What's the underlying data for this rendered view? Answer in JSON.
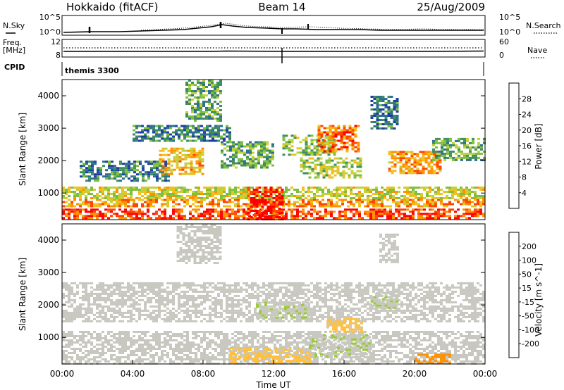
{
  "header": {
    "title_left": "Hokkaido (fitACF)",
    "title_center": "Beam 14",
    "title_right": "25/Aug/2009"
  },
  "noise_panel": {
    "left_label": "N.Sky",
    "left_ticks": [
      "10^5",
      "10^0"
    ],
    "right_label": "N.Search",
    "right_ticks": [
      "10^5",
      "10^0"
    ]
  },
  "freq_panel": {
    "left_label_1": "Freq.",
    "left_label_2": "[MHz]",
    "left_ticks": [
      "12",
      "8"
    ],
    "right_label": "Nave",
    "right_ticks": [
      "60",
      "0"
    ]
  },
  "cpid_panel": {
    "label": "CPID",
    "value": "themis 3300"
  },
  "colors": {
    "power": [
      "#0000ff",
      "#1f3fa0",
      "#2f6f8f",
      "#3f8f5f",
      "#7fbf3f",
      "#bfd23a",
      "#f0c020",
      "#ff9000",
      "#ff4500",
      "#ff0000"
    ],
    "velocity": [
      "#ff0000",
      "#ff5000",
      "#ff9000",
      "#ffc040",
      "#c8c8c0",
      "#c8c8c0",
      "#99cc33",
      "#33aa33",
      "#1f5fa0",
      "#0000ff"
    ]
  },
  "chart_data": [
    {
      "type": "heatmap",
      "name": "power",
      "xlabel": "",
      "ylabel": "Slant Range [km]",
      "xlim": [
        0,
        24
      ],
      "ylim": [
        180,
        4500
      ],
      "yticks": [
        "1000",
        "2000",
        "3000",
        "4000"
      ],
      "yticks_values": [
        1000,
        2000,
        3000,
        4000
      ],
      "colorbar_label": "Power [dB]",
      "colorbar_ticks": [
        "4",
        "8",
        "12",
        "16",
        "20",
        "24",
        "28"
      ],
      "colorbar_range": [
        0,
        30
      ],
      "regions": [
        {
          "t0": 0.0,
          "t1": 24.0,
          "r0": 200,
          "r1": 520,
          "v": 26
        },
        {
          "t0": 0.0,
          "t1": 24.0,
          "r0": 560,
          "r1": 820,
          "v": 22
        },
        {
          "t0": 0.0,
          "t1": 24.0,
          "r0": 860,
          "r1": 1200,
          "v": 17
        },
        {
          "t0": 1.0,
          "t1": 6.0,
          "r0": 1400,
          "r1": 2000,
          "v": 9
        },
        {
          "t0": 5.5,
          "t1": 8.0,
          "r0": 1600,
          "r1": 2400,
          "v": 20
        },
        {
          "t0": 4.0,
          "t1": 9.5,
          "r0": 2600,
          "r1": 3100,
          "v": 9
        },
        {
          "t0": 7.0,
          "t1": 9.0,
          "r0": 3200,
          "r1": 4500,
          "v": 12
        },
        {
          "t0": 9.0,
          "t1": 12.0,
          "r0": 1800,
          "r1": 2600,
          "v": 12
        },
        {
          "t0": 12.5,
          "t1": 15.5,
          "r0": 2200,
          "r1": 2800,
          "v": 14
        },
        {
          "t0": 14.5,
          "t1": 16.8,
          "r0": 2300,
          "r1": 3100,
          "v": 24
        },
        {
          "t0": 13.5,
          "t1": 17.0,
          "r0": 1500,
          "r1": 2100,
          "v": 16
        },
        {
          "t0": 17.5,
          "t1": 19.0,
          "r0": 3000,
          "r1": 4000,
          "v": 8
        },
        {
          "t0": 18.5,
          "t1": 21.5,
          "r0": 1600,
          "r1": 2300,
          "v": 22
        },
        {
          "t0": 21.0,
          "t1": 24.0,
          "r0": 2000,
          "r1": 2700,
          "v": 12
        },
        {
          "t0": 10.5,
          "t1": 12.5,
          "r0": 200,
          "r1": 1200,
          "v": 28
        }
      ]
    },
    {
      "type": "heatmap",
      "name": "velocity",
      "xlabel": "Time UT",
      "ylabel": "Slant Range [km]",
      "xlim": [
        0,
        24
      ],
      "ylim": [
        180,
        4500
      ],
      "xticks": [
        "00:00",
        "04:00",
        "08:00",
        "12:00",
        "16:00",
        "20:00",
        "00:00"
      ],
      "xticks_values": [
        0,
        4,
        8,
        12,
        16,
        20,
        24
      ],
      "yticks": [
        "1000",
        "2000",
        "3000",
        "4000"
      ],
      "yticks_values": [
        1000,
        2000,
        3000,
        4000
      ],
      "colorbar_label": "Velocity [m s^-1]",
      "colorbar_ticks": [
        "-200",
        "-100",
        "-50",
        "-15",
        "15",
        "50",
        "100",
        "200"
      ],
      "colorbar_range": [
        -250,
        250
      ],
      "regions": [
        {
          "t0": 0.0,
          "t1": 24.0,
          "r0": 200,
          "r1": 1200,
          "v": 0
        },
        {
          "t0": 0.0,
          "t1": 24.0,
          "r0": 1500,
          "r1": 2700,
          "v": 0
        },
        {
          "t0": 9.5,
          "t1": 14.0,
          "r0": 200,
          "r1": 700,
          "v": -60
        },
        {
          "t0": 14.0,
          "t1": 17.5,
          "r0": 400,
          "r1": 1100,
          "v": 40
        },
        {
          "t0": 11.0,
          "t1": 14.0,
          "r0": 1600,
          "r1": 2100,
          "v": 40
        },
        {
          "t0": 15.0,
          "t1": 17.0,
          "r0": 1200,
          "r1": 1600,
          "v": -60
        },
        {
          "t0": 17.5,
          "t1": 19.0,
          "r0": 1900,
          "r1": 2400,
          "v": 40
        },
        {
          "t0": 18.0,
          "t1": 19.0,
          "r0": 3300,
          "r1": 4200,
          "v": 30
        },
        {
          "t0": 6.5,
          "t1": 9.0,
          "r0": 3300,
          "r1": 4500,
          "v": 0
        },
        {
          "t0": 20.0,
          "t1": 22.0,
          "r0": 200,
          "r1": 500,
          "v": -120
        }
      ]
    }
  ]
}
